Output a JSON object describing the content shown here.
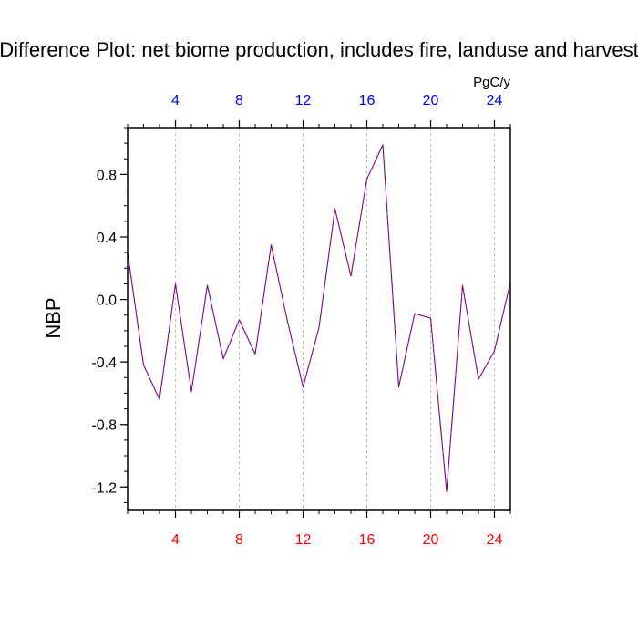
{
  "chart_data": {
    "type": "line",
    "title": "Difference Plot: net biome production, includes fire, landuse and harvest",
    "ylabel": "NBP",
    "units_label": "PgC/y",
    "xlim": [
      1,
      25
    ],
    "ylim": [
      -1.35,
      1.1
    ],
    "x_ticks": [
      4,
      8,
      12,
      16,
      20,
      24
    ],
    "y_ticks": [
      -1.2,
      -0.8,
      -0.4,
      0.0,
      0.4,
      0.8
    ],
    "y_tick_labels": [
      "-1.2",
      "-0.8",
      "-0.4",
      "0.0",
      "0.4",
      "0.8"
    ],
    "grid": "vertical-dashed",
    "colors": {
      "bottom_ticks": "#ff0000",
      "top_ticks": "#0000ff",
      "line_a": "#0000ff",
      "line_b": "#ff0000"
    },
    "x": [
      1,
      2,
      3,
      4,
      5,
      6,
      7,
      8,
      9,
      10,
      11,
      12,
      13,
      14,
      15,
      16,
      17,
      18,
      19,
      20,
      21,
      22,
      23,
      24,
      25
    ],
    "series": [
      {
        "values": [
          0.3,
          -0.42,
          -0.64,
          0.1,
          -0.59,
          0.09,
          -0.38,
          -0.13,
          -0.35,
          0.35,
          -0.13,
          -0.56,
          -0.18,
          0.58,
          0.15,
          0.77,
          0.99,
          -0.56,
          -0.09,
          -0.12,
          -1.23,
          0.09,
          -0.51,
          -0.33,
          0.11
        ]
      }
    ]
  }
}
